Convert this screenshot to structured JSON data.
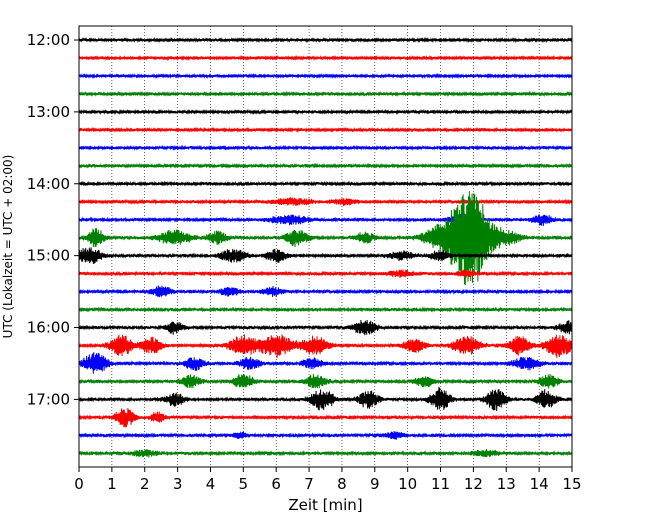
{
  "chart_data": {
    "type": "line",
    "title": "",
    "xlabel": "Zeit  [min]",
    "ylabel": "UTC (Lokalzeit = UTC + 02:00)",
    "xlim": [
      0,
      15
    ],
    "x_ticks": [
      "0",
      "1",
      "2",
      "3",
      "4",
      "5",
      "6",
      "7",
      "8",
      "9",
      "10",
      "11",
      "12",
      "13",
      "14",
      "15"
    ],
    "y_ticks": [
      {
        "label": "12:00",
        "trace": 0
      },
      {
        "label": "13:00",
        "trace": 4
      },
      {
        "label": "14:00",
        "trace": 8
      },
      {
        "label": "15:00",
        "trace": 12
      },
      {
        "label": "16:00",
        "trace": 16
      },
      {
        "label": "17:00",
        "trace": 20
      }
    ],
    "grid": "vertical dotted",
    "series_colors": [
      "#000000",
      "#ff0000",
      "#0000ff",
      "#008000"
    ],
    "traces": [
      {
        "start": "12:00",
        "color": "#000000"
      },
      {
        "start": "12:15",
        "color": "#ff0000"
      },
      {
        "start": "12:30",
        "color": "#0000ff"
      },
      {
        "start": "12:45",
        "color": "#008000"
      },
      {
        "start": "13:00",
        "color": "#000000"
      },
      {
        "start": "13:15",
        "color": "#ff0000"
      },
      {
        "start": "13:30",
        "color": "#0000ff"
      },
      {
        "start": "13:45",
        "color": "#008000"
      },
      {
        "start": "14:00",
        "color": "#000000"
      },
      {
        "start": "14:15",
        "color": "#ff0000"
      },
      {
        "start": "14:30",
        "color": "#0000ff"
      },
      {
        "start": "14:45",
        "color": "#008000"
      },
      {
        "start": "15:00",
        "color": "#000000"
      },
      {
        "start": "15:15",
        "color": "#ff0000"
      },
      {
        "start": "15:30",
        "color": "#0000ff"
      },
      {
        "start": "15:45",
        "color": "#008000"
      },
      {
        "start": "16:00",
        "color": "#000000"
      },
      {
        "start": "16:15",
        "color": "#ff0000"
      },
      {
        "start": "16:30",
        "color": "#0000ff"
      },
      {
        "start": "16:45",
        "color": "#008000"
      },
      {
        "start": "17:00",
        "color": "#000000"
      },
      {
        "start": "17:15",
        "color": "#ff0000"
      },
      {
        "start": "17:30",
        "color": "#0000ff"
      },
      {
        "start": "17:45",
        "color": "#008000"
      }
    ]
  }
}
